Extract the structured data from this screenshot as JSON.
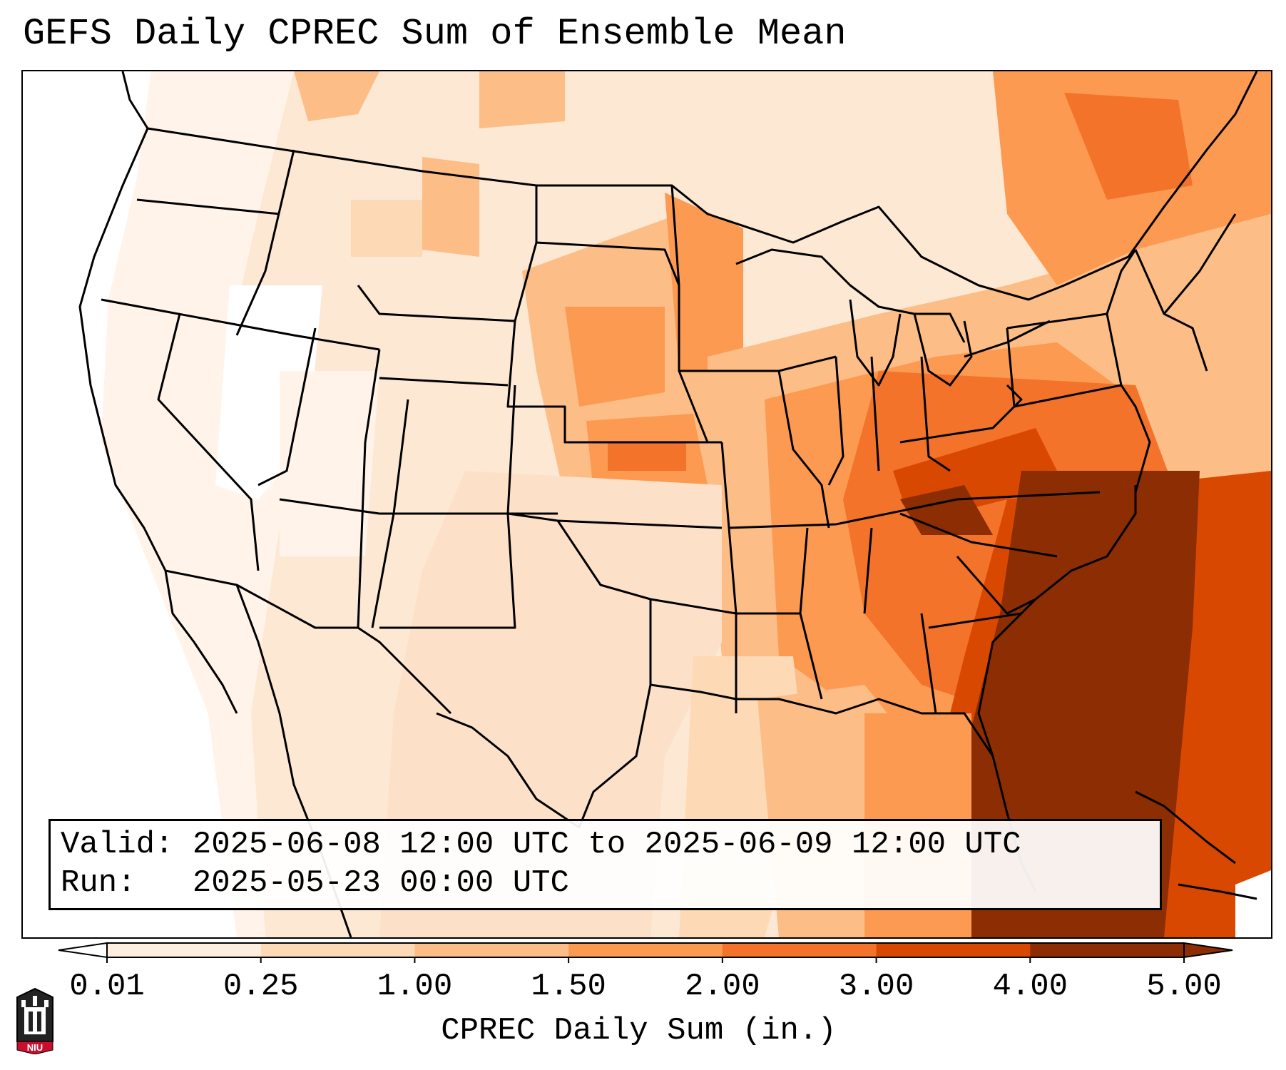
{
  "title": "GEFS Daily CPREC Sum of Ensemble Mean",
  "info": {
    "valid_label": "Valid:",
    "valid_value": "2025-06-08 12:00 UTC to 2025-06-09 12:00 UTC",
    "run_label": "Run:",
    "run_value": "2025-05-23 00:00 UTC"
  },
  "colorbar": {
    "label": "CPREC Daily Sum (in.)",
    "ticks": [
      "0.01",
      "0.25",
      "1.00",
      "1.50",
      "2.00",
      "3.00",
      "4.00",
      "5.00"
    ],
    "colors": [
      "#ffffff",
      "#fdeee0",
      "#fdd9b6",
      "#fdbd86",
      "#fd9a52",
      "#f3732a",
      "#d94801",
      "#8c2d04"
    ],
    "extend": "both"
  },
  "legend_colors": {
    "background": "#fde8d4",
    "light": "#fdd9b6",
    "medium": "#fdbd86",
    "orange": "#fd9a52",
    "dark": "#f3732a",
    "darker": "#d94801",
    "darkest": "#8c2d04",
    "outline": "#000000"
  },
  "logo": {
    "text": "NIU",
    "icon": "niu-castle-logo-icon",
    "color": "#c8102e"
  }
}
